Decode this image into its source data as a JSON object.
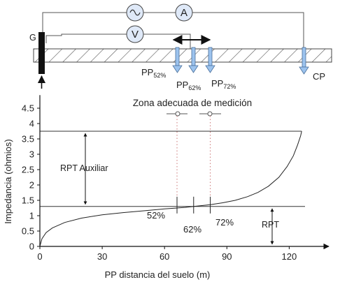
{
  "instruments": {
    "source_symbol": "~",
    "ammeter": "A",
    "voltmeter": "V"
  },
  "electrodes": {
    "ground": "G",
    "pp_prefix": "PP",
    "pp52_sub": "52%",
    "pp62_sub": "62%",
    "pp72_sub": "72%",
    "current_probe": "CP"
  },
  "zone_label": "Zona adecuada de medición",
  "annotations": {
    "rpt_aux": "RPT Auxiliar",
    "rpt": "RPT",
    "pct52": "52%",
    "pct62": "62%",
    "pct72": "72%"
  },
  "chart_data": {
    "type": "line",
    "xlabel": "PP distancia del suelo (m)",
    "ylabel": "Impedancia (ohmios)",
    "x_ticks": [
      0,
      30,
      60,
      90,
      120
    ],
    "y_ticks": [
      0,
      0.5,
      1,
      1.5,
      2,
      2.5,
      3,
      3.5,
      4,
      4.5
    ],
    "x_tick_labels": [
      "0",
      "30",
      "60",
      "90",
      "120"
    ],
    "y_tick_labels": [
      "0",
      "0.5",
      "1",
      "1.5",
      "2",
      "2.5",
      "3",
      "3.5",
      "4",
      "4.5"
    ],
    "xlim": [
      0,
      185
    ],
    "ylim": [
      0,
      4.7
    ],
    "reference_lines": {
      "rpt": 1.3,
      "rpt_auxiliar": 3.75
    },
    "markers_x": [
      66,
      74,
      82
    ],
    "series": [
      {
        "x": [
          0,
          1,
          3,
          6,
          12,
          20,
          30,
          40,
          50,
          60,
          66,
          70,
          74,
          78,
          82,
          88,
          94,
          100,
          105,
          110,
          115,
          119,
          122,
          124,
          125.5,
          126
        ],
        "y": [
          0,
          0.25,
          0.45,
          0.6,
          0.78,
          0.92,
          1.03,
          1.1,
          1.16,
          1.22,
          1.25,
          1.27,
          1.3,
          1.33,
          1.36,
          1.42,
          1.5,
          1.62,
          1.76,
          1.96,
          2.25,
          2.6,
          2.95,
          3.3,
          3.6,
          3.75
        ]
      }
    ]
  }
}
